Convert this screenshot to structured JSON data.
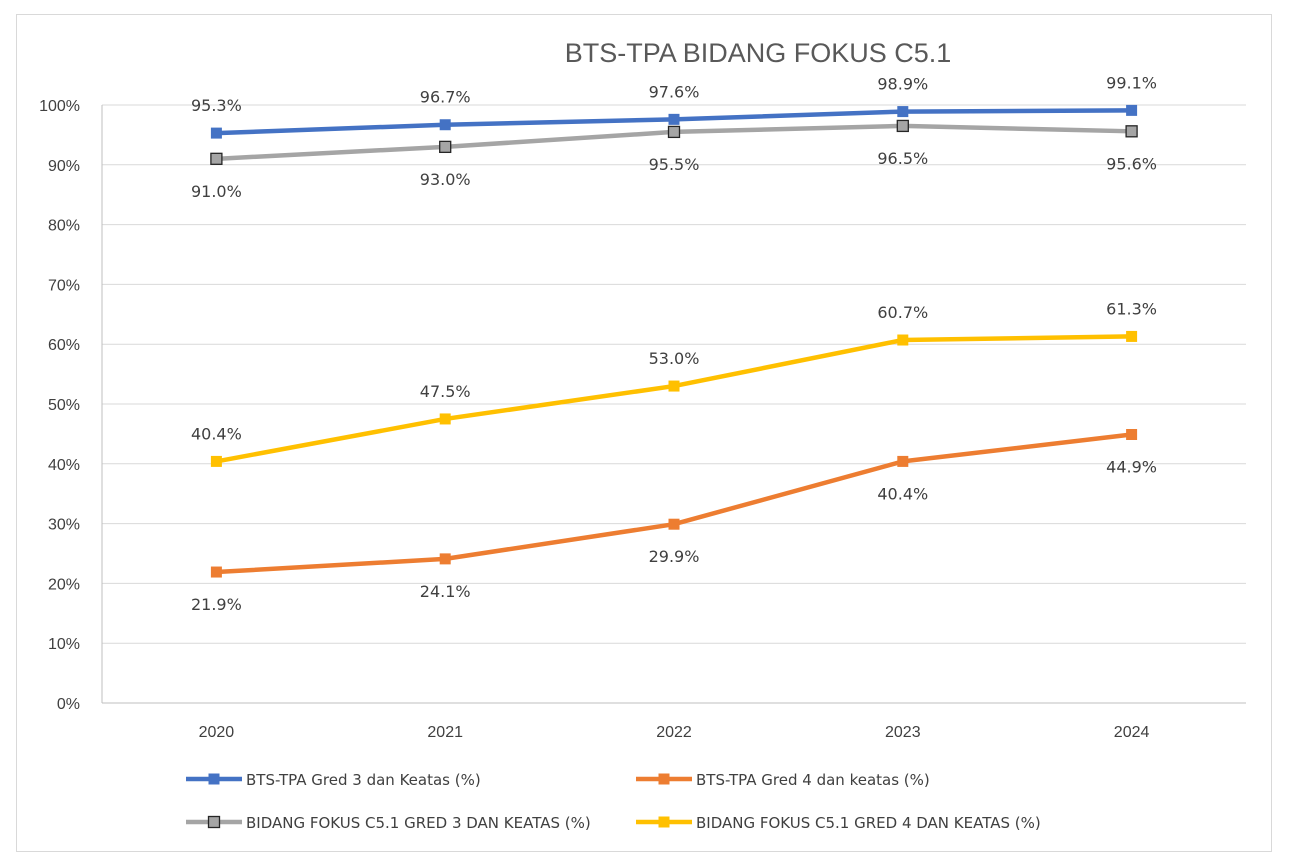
{
  "chart_data": {
    "type": "line",
    "title": "BTS-TPA BIDANG FOKUS C5.1",
    "categories": [
      "2020",
      "2021",
      "2022",
      "2023",
      "2024"
    ],
    "ylim": [
      0,
      100
    ],
    "y_ticks": [
      0,
      10,
      20,
      30,
      40,
      50,
      60,
      70,
      80,
      90,
      100
    ],
    "y_tick_labels": [
      "0%",
      "10%",
      "20%",
      "30%",
      "40%",
      "50%",
      "60%",
      "70%",
      "80%",
      "90%",
      "100%"
    ],
    "grid": "horizontal",
    "legend_position": "bottom",
    "series": [
      {
        "name": "BTS-TPA Gred 3 dan Keatas  (%)",
        "color": "#4472c4",
        "marker_fill": "#4472c4",
        "marker_stroke": "#4472c4",
        "label_position": "above",
        "values": [
          95.3,
          96.7,
          97.6,
          98.9,
          99.1
        ],
        "labels": [
          "95.3%",
          "96.7%",
          "97.6%",
          "98.9%",
          "99.1%"
        ]
      },
      {
        "name": "BTS-TPA Gred 4 dan keatas (%)",
        "color": "#ed7d31",
        "marker_fill": "#ed7d31",
        "marker_stroke": "#ed7d31",
        "label_position": "below",
        "values": [
          21.9,
          24.1,
          29.9,
          40.4,
          44.9
        ],
        "labels": [
          "21.9%",
          "24.1%",
          "29.9%",
          "40.4%",
          "44.9%"
        ]
      },
      {
        "name": "BIDANG FOKUS C5.1 GRED 3 DAN KEATAS (%)",
        "color": "#a5a5a5",
        "marker_fill": "#a5a5a5",
        "marker_stroke": "#262626",
        "label_position": "below",
        "values": [
          91.0,
          93.0,
          95.5,
          96.5,
          95.6
        ],
        "labels": [
          "91.0%",
          "93.0%",
          "95.5%",
          "96.5%",
          "95.6%"
        ]
      },
      {
        "name": "BIDANG FOKUS C5.1 GRED 4 DAN KEATAS (%)",
        "color": "#ffc000",
        "marker_fill": "#ffc000",
        "marker_stroke": "#ffc000",
        "label_position": "above",
        "values": [
          40.4,
          47.5,
          53.0,
          60.7,
          61.3
        ],
        "labels": [
          "40.4%",
          "47.5%",
          "53.0%",
          "60.7%",
          "61.3%"
        ]
      }
    ]
  }
}
